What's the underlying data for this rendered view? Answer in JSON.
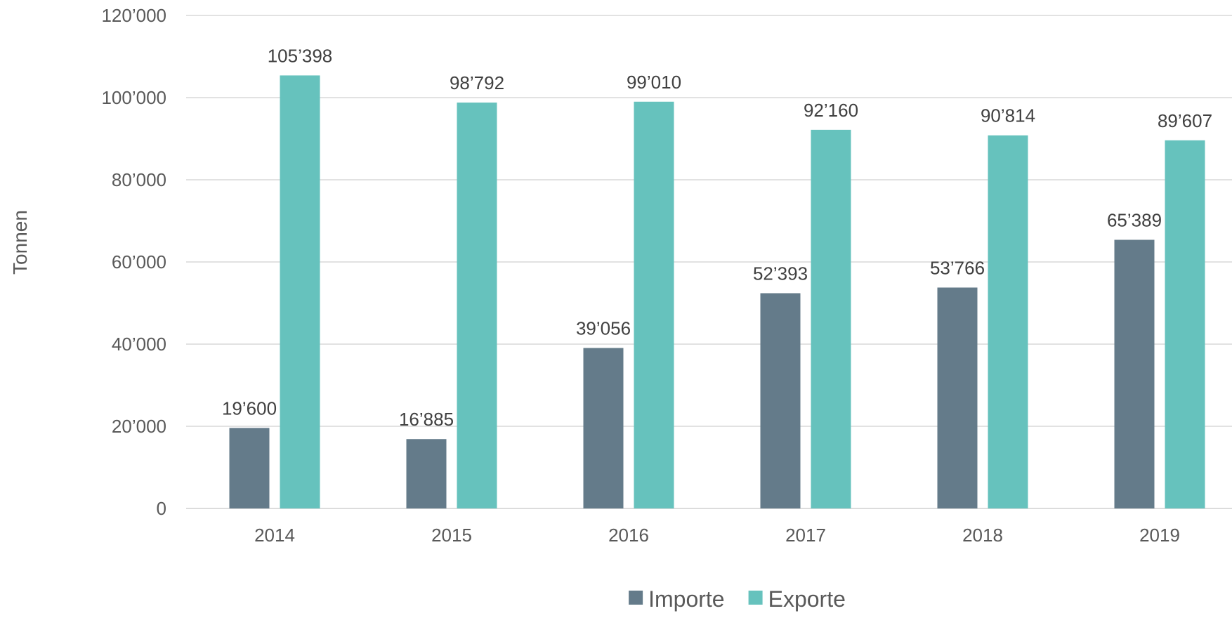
{
  "chart_data": {
    "type": "bar",
    "ylabel": "Tonnen",
    "xlabel": "",
    "ylim": [
      0,
      120000
    ],
    "yticks": [
      0,
      20000,
      40000,
      60000,
      80000,
      100000,
      120000
    ],
    "ytick_labels": [
      "0",
      "20’000",
      "40’000",
      "60’000",
      "80’000",
      "100’000",
      "120’000"
    ],
    "categories": [
      "2014",
      "2015",
      "2016",
      "2017",
      "2018",
      "2019"
    ],
    "grid": true,
    "legend_position": "bottom",
    "series": [
      {
        "name": "Importe",
        "color": "#647b8a",
        "values": [
          19600,
          16885,
          39056,
          52393,
          53766,
          65389
        ],
        "labels": [
          "19’600",
          "16’885",
          "39’056",
          "52’393",
          "53’766",
          "65’389"
        ]
      },
      {
        "name": "Exporte",
        "color": "#66c2bd",
        "values": [
          105398,
          98792,
          99010,
          92160,
          90814,
          89607
        ],
        "labels": [
          "105’398",
          "98’792",
          "99’010",
          "92’160",
          "90’814",
          "89’607"
        ]
      }
    ]
  }
}
